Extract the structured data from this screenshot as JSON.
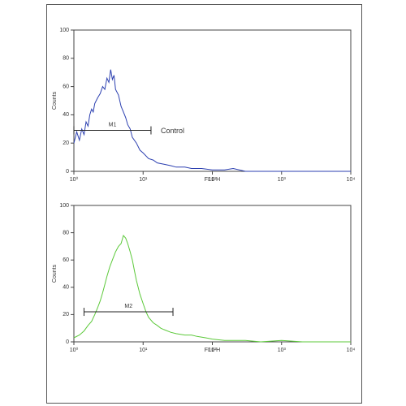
{
  "chart_data": [
    {
      "type": "line",
      "color": "#2b3fb0",
      "xlabel": "FL1-H",
      "ylabel": "Counts",
      "log_x": true,
      "xlim": [
        1,
        10000
      ],
      "ylim": [
        0,
        100
      ],
      "xticks": [
        {
          "value": 1,
          "label": "10⁰"
        },
        {
          "value": 10,
          "label": "10¹"
        },
        {
          "value": 100,
          "label": "10²"
        },
        {
          "value": 1000,
          "label": "10³"
        },
        {
          "value": 10000,
          "label": "10⁴"
        }
      ],
      "yticks": [
        0,
        20,
        40,
        60,
        80,
        100
      ],
      "x": [
        1,
        1.1,
        1.2,
        1.3,
        1.4,
        1.5,
        1.6,
        1.7,
        1.8,
        1.9,
        2.0,
        2.2,
        2.4,
        2.6,
        2.8,
        3.0,
        3.2,
        3.4,
        3.6,
        3.8,
        4.0,
        4.4,
        4.8,
        5.2,
        5.6,
        6,
        6.5,
        7,
        8,
        9,
        10,
        12,
        14,
        16,
        20,
        25,
        30,
        40,
        50,
        70,
        100,
        150,
        200,
        300,
        500,
        1000,
        10000
      ],
      "values": [
        20,
        28,
        22,
        30,
        26,
        35,
        32,
        40,
        44,
        42,
        48,
        52,
        55,
        60,
        58,
        66,
        63,
        72,
        65,
        68,
        58,
        54,
        46,
        42,
        38,
        33,
        30,
        24,
        20,
        15,
        13,
        9,
        8,
        6,
        5,
        4,
        3,
        3,
        2,
        2,
        1,
        1,
        2,
        0,
        0,
        0,
        0
      ],
      "gate": {
        "label": "M1",
        "range": [
          1,
          13
        ],
        "y": 29
      },
      "annotation": "Control"
    },
    {
      "type": "line",
      "color": "#5cc93a",
      "xlabel": "FL1-H",
      "ylabel": "Counts",
      "log_x": true,
      "xlim": [
        1,
        10000
      ],
      "ylim": [
        0,
        100
      ],
      "xticks": [
        {
          "value": 1,
          "label": "10⁰"
        },
        {
          "value": 10,
          "label": "10¹"
        },
        {
          "value": 100,
          "label": "10²"
        },
        {
          "value": 1000,
          "label": "10³"
        },
        {
          "value": 10000,
          "label": "10⁴"
        }
      ],
      "yticks": [
        0,
        20,
        40,
        60,
        80,
        100
      ],
      "x": [
        1,
        1.2,
        1.4,
        1.6,
        1.8,
        2,
        2.2,
        2.4,
        2.6,
        2.8,
        3,
        3.3,
        3.6,
        4,
        4.4,
        4.8,
        5.2,
        5.6,
        6,
        6.5,
        7,
        7.5,
        8,
        9,
        10,
        11,
        12,
        14,
        16,
        18,
        20,
        25,
        30,
        40,
        50,
        60,
        80,
        100,
        150,
        200,
        300,
        500,
        1000,
        2000,
        5000,
        10000
      ],
      "values": [
        3,
        5,
        8,
        12,
        15,
        20,
        25,
        30,
        36,
        42,
        48,
        55,
        60,
        66,
        70,
        72,
        78,
        76,
        72,
        66,
        60,
        52,
        45,
        35,
        28,
        22,
        18,
        14,
        12,
        10,
        9,
        7,
        6,
        5,
        5,
        4,
        3,
        2,
        1,
        1,
        1,
        0,
        1,
        0,
        0,
        0
      ],
      "gate": {
        "label": "M2",
        "range": [
          1.4,
          27
        ],
        "y": 22
      }
    }
  ]
}
